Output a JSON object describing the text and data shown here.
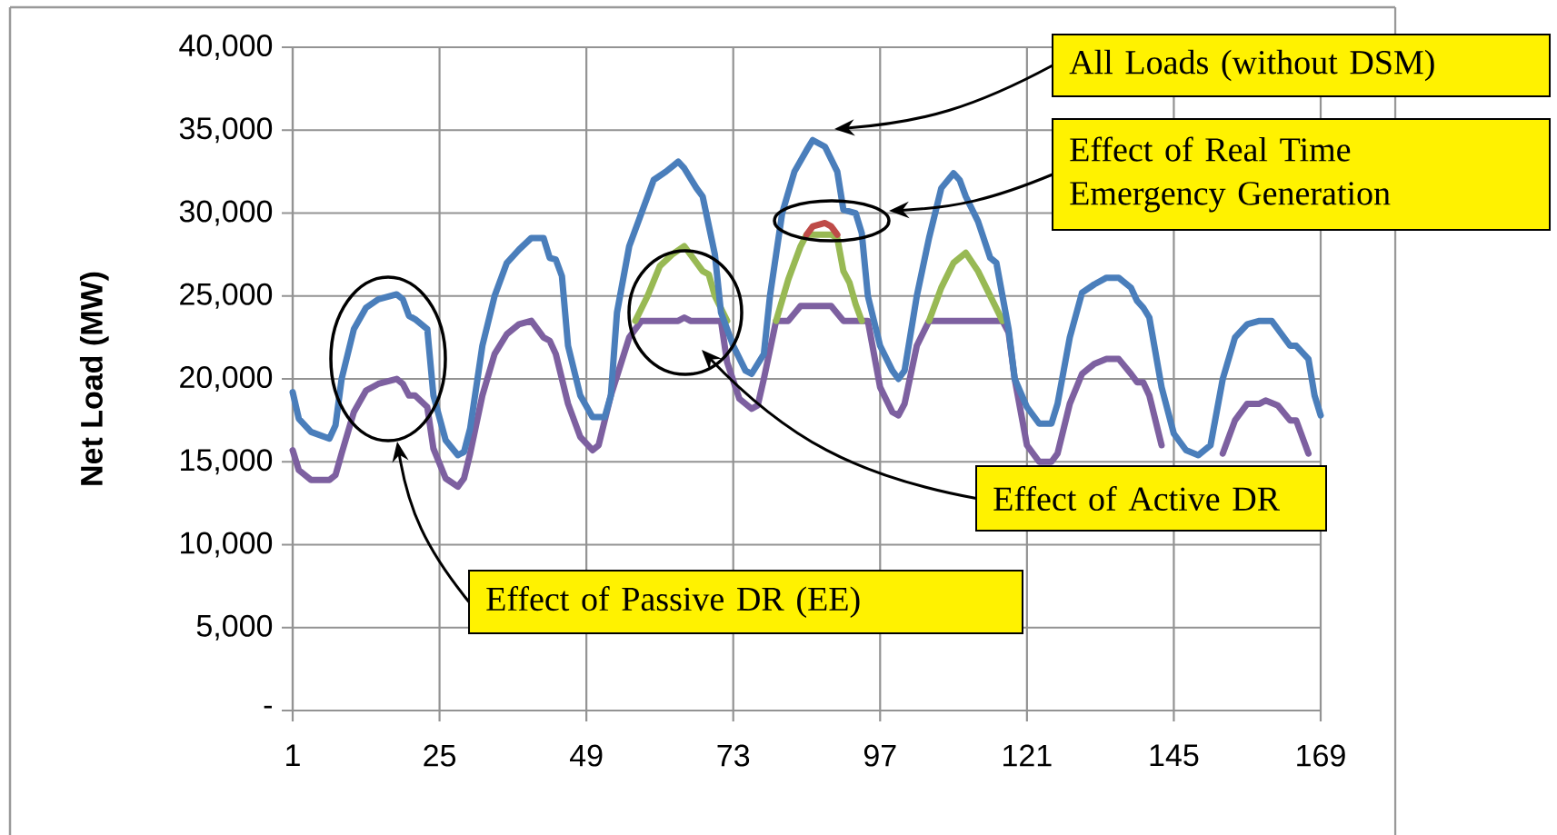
{
  "chart_data": {
    "type": "line",
    "ylabel": "Net Load (MW)",
    "xlim": [
      1,
      169
    ],
    "xticks": [
      1,
      25,
      49,
      73,
      97,
      121,
      145,
      169
    ],
    "ylim": [
      0,
      40000
    ],
    "yticks": [
      {
        "value": 0,
        "label": "-"
      },
      {
        "value": 5000,
        "label": "5,000"
      },
      {
        "value": 10000,
        "label": "10,000"
      },
      {
        "value": 15000,
        "label": "15,000"
      },
      {
        "value": 20000,
        "label": "20,000"
      },
      {
        "value": 25000,
        "label": "25,000"
      },
      {
        "value": 30000,
        "label": "30,000"
      },
      {
        "value": 35000,
        "label": "35,000"
      },
      {
        "value": 40000,
        "label": "40,000"
      }
    ],
    "grid": true,
    "series": [
      {
        "color": "#7d60a0",
        "x": [
          1,
          2,
          4,
          7,
          8,
          9,
          11,
          13,
          15,
          18,
          19,
          20,
          21,
          23,
          24,
          26,
          28,
          29,
          30,
          32,
          34,
          36,
          38,
          40,
          42,
          43,
          44,
          46,
          48,
          50,
          51,
          53,
          56,
          58,
          64,
          65,
          66,
          71,
          72,
          74,
          76,
          77,
          78,
          80,
          82,
          84,
          89,
          91,
          95,
          97,
          99,
          100,
          101,
          103,
          105,
          117,
          118,
          119,
          121,
          123,
          125,
          126,
          128,
          130,
          132,
          134,
          136,
          138,
          139,
          140,
          141,
          143,
          144,
          152,
          153,
          155,
          157,
          159,
          160,
          162,
          164,
          165,
          167
        ],
        "values": [
          15700,
          14500,
          13900,
          13900,
          14200,
          15500,
          18000,
          19300,
          19700,
          20000,
          19700,
          19000,
          19000,
          18300,
          15800,
          14000,
          13500,
          14000,
          15500,
          19000,
          21500,
          22700,
          23300,
          23500,
          22500,
          22300,
          21500,
          18500,
          16500,
          15700,
          16000,
          19000,
          22500,
          23500,
          23500,
          23700,
          23500,
          23500,
          21000,
          18800,
          18200,
          18400,
          20000,
          23500,
          23500,
          24400,
          24400,
          23500,
          23500,
          19500,
          18000,
          17800,
          18500,
          22000,
          23500,
          23500,
          22800,
          20000,
          16000,
          15000,
          15000,
          15500,
          18500,
          20300,
          20900,
          21200,
          21200,
          20300,
          19800,
          19800,
          19000,
          16000,
          null,
          null,
          15500,
          17500,
          18500,
          18500,
          18700,
          18400,
          17500,
          17500,
          15500
        ]
      },
      {
        "color": "#98b954",
        "x": [
          57,
          59,
          61,
          63,
          65,
          67,
          68,
          69,
          70,
          72,
          76,
          80,
          82,
          84,
          85,
          89,
          90,
          91,
          92,
          93,
          94,
          100,
          105,
          107,
          109,
          111,
          113,
          115,
          117
        ],
        "values": [
          23500,
          25000,
          26800,
          27500,
          28000,
          27000,
          26500,
          26300,
          25000,
          23500,
          null,
          23500,
          26000,
          28000,
          28700,
          28700,
          28500,
          26500,
          25800,
          24500,
          23500,
          null,
          23500,
          25500,
          27000,
          27600,
          26500,
          25000,
          23500
        ]
      },
      {
        "color": "#be4b48",
        "x": [
          85,
          86,
          88,
          89,
          90
        ],
        "values": [
          28700,
          29200,
          29400,
          29200,
          28700
        ]
      },
      {
        "color": "#4a7ebb",
        "x": [
          1,
          2,
          4,
          7,
          8,
          9,
          11,
          13,
          15,
          18,
          19,
          20,
          21,
          23,
          24,
          26,
          28,
          29,
          30,
          32,
          34,
          36,
          38,
          40,
          42,
          43,
          44,
          45,
          46,
          48,
          50,
          52,
          53,
          54,
          56,
          58,
          60,
          62,
          64,
          65,
          67,
          68,
          70,
          71,
          73,
          75,
          76,
          78,
          79,
          81,
          83,
          85,
          86,
          88,
          90,
          91,
          93,
          94,
          95,
          97,
          99,
          100,
          101,
          103,
          105,
          107,
          109,
          110,
          111,
          113,
          115,
          116,
          118,
          119,
          121,
          123,
          125,
          126,
          128,
          130,
          132,
          134,
          136,
          138,
          139,
          140,
          141,
          143,
          145,
          147,
          149,
          151,
          153,
          155,
          157,
          159,
          161,
          162,
          164,
          165,
          167,
          168,
          169
        ],
        "values": [
          19200,
          17600,
          16800,
          16400,
          17200,
          20000,
          23000,
          24300,
          24800,
          25100,
          24800,
          23800,
          23600,
          23000,
          19000,
          16300,
          15400,
          15600,
          17000,
          22000,
          25000,
          27000,
          27800,
          28500,
          28500,
          27300,
          27200,
          26200,
          22000,
          19000,
          17700,
          17700,
          19000,
          24000,
          28000,
          30000,
          32000,
          32500,
          33100,
          32700,
          31500,
          31000,
          27500,
          24000,
          22000,
          20500,
          20300,
          21500,
          25000,
          30000,
          32500,
          33800,
          34400,
          34000,
          32500,
          30200,
          30000,
          28800,
          25000,
          22000,
          20500,
          20000,
          20500,
          25000,
          28500,
          31500,
          32400,
          32000,
          31000,
          29500,
          27300,
          27000,
          23000,
          20000,
          18300,
          17300,
          17300,
          18500,
          22500,
          25200,
          25700,
          26100,
          26100,
          25500,
          24700,
          24300,
          23700,
          19500,
          16700,
          15700,
          15400,
          16000,
          20000,
          22500,
          23300,
          23500,
          23500,
          23000,
          22000,
          22000,
          21200,
          19000,
          17800
        ]
      }
    ],
    "annotations": [
      "All Loads (without DSM)",
      "Effect of Real Time Emergency Generation",
      "Effect of Active DR",
      "Effect of Passive DR (EE)"
    ]
  }
}
